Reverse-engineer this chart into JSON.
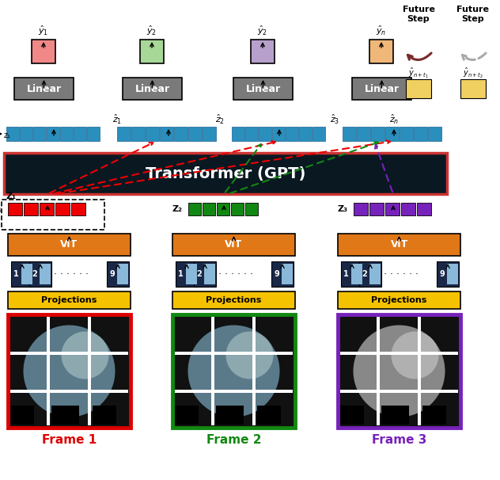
{
  "fig_width": 6.32,
  "fig_height": 6.06,
  "bg_color": "#ffffff",
  "transformer_bg": "#0a1822",
  "transformer_border": "#cc3333",
  "blue_bar": "#2a8fbd",
  "orange_vit": "#e07818",
  "yellow_proj": "#f5c200",
  "gray_linear": "#7a7a7a",
  "dark_navy": "#1a2848",
  "light_blue_token": "#8ab8d8",
  "red_embed": "#ee0000",
  "green_embed": "#118811",
  "purple_embed": "#7722bb",
  "pink_out": "#f08888",
  "lgreen_out": "#a8d898",
  "lpurple_out": "#b8a0cc",
  "peach_out": "#f0b878",
  "yellow_future": "#f0d060",
  "brown_arrow": "#7a2a2a",
  "gray_arrow_col": "#aaaaaa",
  "frame1_color": "#dd0000",
  "frame2_color": "#118811",
  "frame3_color": "#7722bb",
  "white": "#ffffff",
  "black": "#000000",
  "frame_labels": [
    "Frame 1",
    "Frame 2",
    "Frame 3"
  ],
  "vit_label": "ViT",
  "proj_label": "Projections",
  "transformer_label": "Transformer (GPT)"
}
